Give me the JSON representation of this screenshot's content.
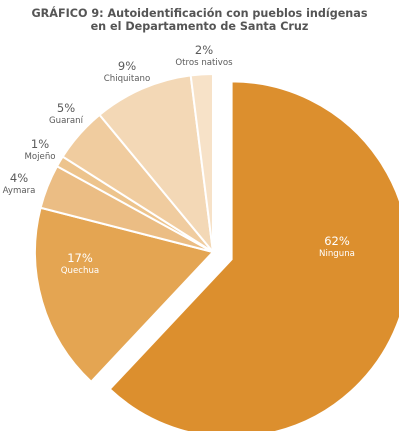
{
  "chart_data": {
    "type": "pie",
    "title": [
      "GRÁFICO 9: Autoidentificación con pueblos indígenas",
      "en el Departamento de Santa Cruz"
    ],
    "slices": [
      {
        "label": "Ninguna",
        "value_label": "62%",
        "value": 62,
        "color": "#dc8f2e",
        "text_color": "#ffffff"
      },
      {
        "label": "Quechua",
        "value_label": "17%",
        "value": 17,
        "color": "#e4a552",
        "text_color": "#ffffff"
      },
      {
        "label": "Aymara",
        "value_label": "4%",
        "value": 4,
        "color": "#ebbd84",
        "text_color": "#5a5a5a"
      },
      {
        "label": "Mojeño",
        "value_label": "1%",
        "value": 1,
        "color": "#edc48d",
        "text_color": "#5a5a5a"
      },
      {
        "label": "Guaraní",
        "value_label": "5%",
        "value": 5,
        "color": "#f0cc9f",
        "text_color": "#5a5a5a"
      },
      {
        "label": "Chiquitano",
        "value_label": "9%",
        "value": 9,
        "color": "#f3d8b6",
        "text_color": "#5a5a5a"
      },
      {
        "label": "Otros nativos",
        "value_label": "2%",
        "value": 2,
        "color": "#f7e2c8",
        "text_color": "#5a5a5a"
      }
    ]
  }
}
